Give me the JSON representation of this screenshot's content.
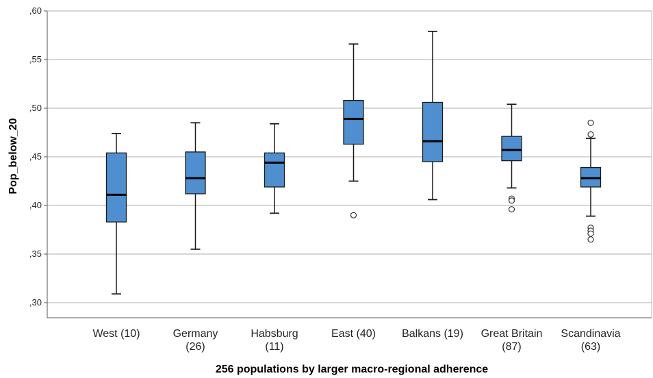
{
  "chart_data": {
    "type": "boxplot",
    "title": "",
    "xlabel": "256 populations by larger macro-regional adherence",
    "ylabel": "Pop_below_20",
    "ylim": [
      0.285,
      0.61
    ],
    "yticks": [
      0.3,
      0.35,
      0.4,
      0.45,
      0.5,
      0.55,
      0.6
    ],
    "ytick_labels": [
      ",30",
      ",35",
      ",40",
      ",45",
      ",50",
      ",55",
      ",60"
    ],
    "grid": "horizontal",
    "colors": {
      "box_fill": "#4f8fd0",
      "box_stroke": "#1b1b1b",
      "grid": "#bdbdbd",
      "axis": "#555555"
    },
    "categories": [
      {
        "label_lines": [
          "West (10)"
        ],
        "whisker_low": 0.309,
        "q1": 0.383,
        "median": 0.411,
        "q3": 0.454,
        "whisker_high": 0.474,
        "outliers": []
      },
      {
        "label_lines": [
          "Germany",
          "(26)"
        ],
        "whisker_low": 0.355,
        "q1": 0.412,
        "median": 0.428,
        "q3": 0.455,
        "whisker_high": 0.485,
        "outliers": []
      },
      {
        "label_lines": [
          "Habsburg",
          "(11)"
        ],
        "whisker_low": 0.392,
        "q1": 0.419,
        "median": 0.444,
        "q3": 0.454,
        "whisker_high": 0.484,
        "outliers": []
      },
      {
        "label_lines": [
          "East (40)"
        ],
        "whisker_low": 0.425,
        "q1": 0.463,
        "median": 0.489,
        "q3": 0.508,
        "whisker_high": 0.566,
        "outliers": [
          0.39
        ]
      },
      {
        "label_lines": [
          "Balkans (19)"
        ],
        "whisker_low": 0.406,
        "q1": 0.445,
        "median": 0.466,
        "q3": 0.506,
        "whisker_high": 0.579,
        "outliers": []
      },
      {
        "label_lines": [
          "Great Britain",
          "(87)"
        ],
        "whisker_low": 0.418,
        "q1": 0.446,
        "median": 0.457,
        "q3": 0.471,
        "whisker_high": 0.504,
        "outliers": [
          0.407,
          0.405,
          0.396
        ]
      },
      {
        "label_lines": [
          "Scandinavia",
          "(63)"
        ],
        "whisker_low": 0.389,
        "q1": 0.419,
        "median": 0.428,
        "q3": 0.439,
        "whisker_high": 0.469,
        "outliers": [
          0.485,
          0.473,
          0.377,
          0.374,
          0.371,
          0.365
        ]
      }
    ]
  }
}
